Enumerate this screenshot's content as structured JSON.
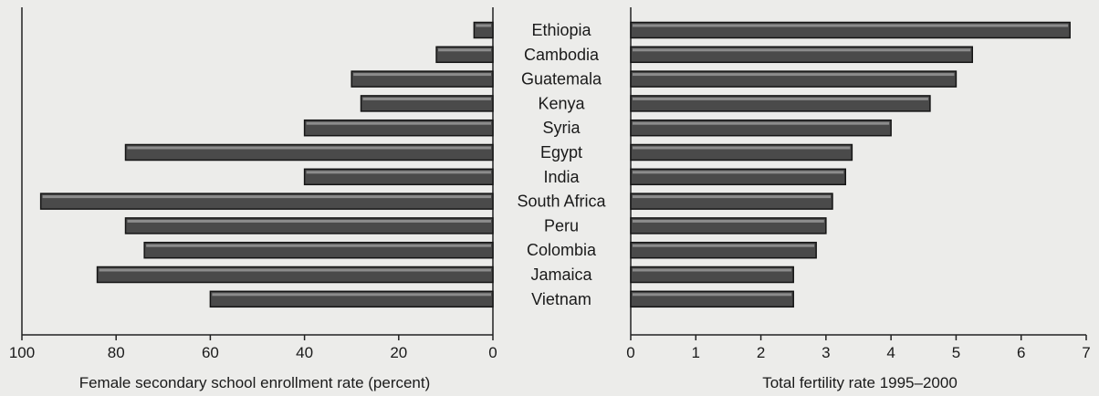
{
  "chart_data": [
    {
      "type": "bar",
      "orientation": "horizontal",
      "direction": "right-to-left",
      "xlabel": "Female secondary school enrollment rate (percent)",
      "xlim": [
        0,
        100
      ],
      "ticks": [
        "100",
        "80",
        "60",
        "40",
        "20",
        "0"
      ],
      "categories": [
        "Ethiopia",
        "Cambodia",
        "Guatemala",
        "Kenya",
        "Syria",
        "Egypt",
        "India",
        "South Africa",
        "Peru",
        "Colombia",
        "Jamaica",
        "Vietnam"
      ],
      "values": [
        4,
        12,
        30,
        28,
        40,
        78,
        40,
        96,
        78,
        74,
        84,
        60
      ]
    },
    {
      "type": "bar",
      "orientation": "horizontal",
      "direction": "left-to-right",
      "xlabel": "Total fertility rate 1995–2000",
      "xlim": [
        0,
        7
      ],
      "ticks": [
        "0",
        "1",
        "2",
        "3",
        "4",
        "5",
        "6",
        "7"
      ],
      "categories": [
        "Ethiopia",
        "Cambodia",
        "Guatemala",
        "Kenya",
        "Syria",
        "Egypt",
        "India",
        "South Africa",
        "Peru",
        "Colombia",
        "Jamaica",
        "Vietnam"
      ],
      "values": [
        6.75,
        5.25,
        5.0,
        4.6,
        4.0,
        3.4,
        3.3,
        3.1,
        3.0,
        2.85,
        2.5,
        2.5
      ]
    }
  ],
  "colors": {
    "bar_fill": "#4a4a4a",
    "bar_outline": "#151515",
    "background": "#ececea"
  }
}
